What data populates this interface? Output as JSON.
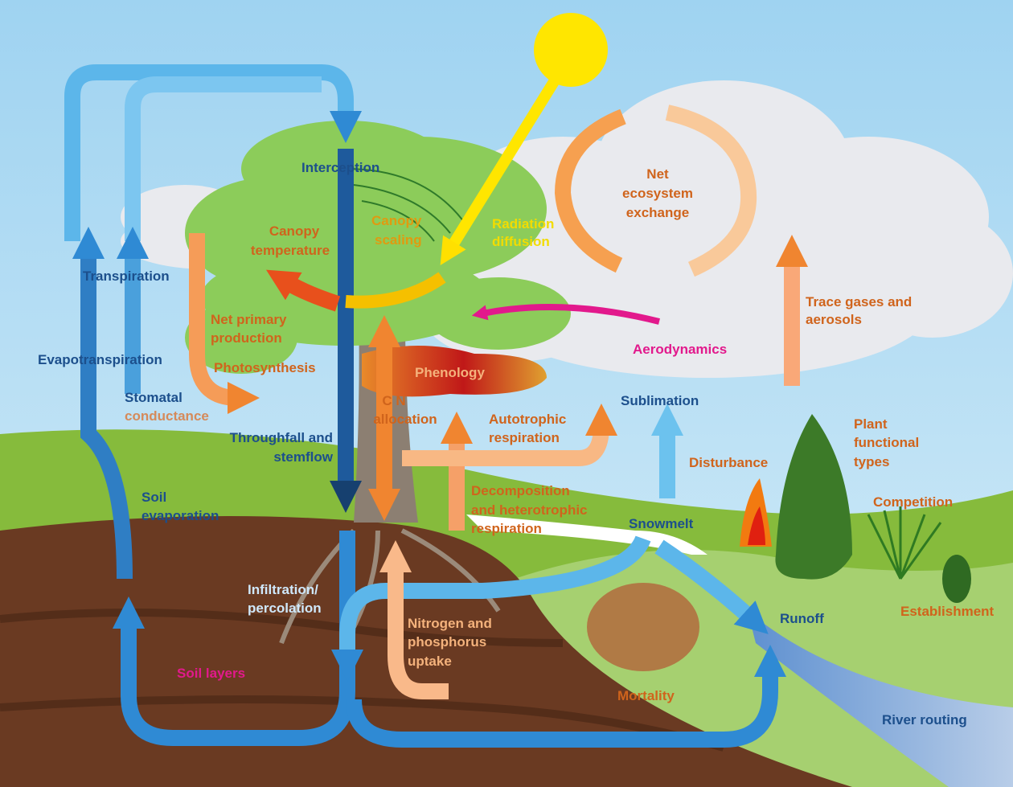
{
  "labels": [
    {
      "lines": [
        "Interception"
      ]
    },
    {
      "lines": [
        "Canopy",
        "scaling"
      ]
    },
    {
      "lines": [
        "Radiation",
        "diffusion"
      ]
    },
    {
      "lines": [
        "Canopy",
        "temperature"
      ]
    },
    {
      "lines": [
        "Net",
        "ecosystem",
        "exchange"
      ]
    },
    {
      "lines": [
        "Transpiration"
      ]
    },
    {
      "lines": [
        "Trace gases and",
        "aerosols"
      ]
    },
    {
      "lines": [
        "Net primary",
        "production"
      ]
    },
    {
      "lines": [
        "Aerodynamics"
      ]
    },
    {
      "lines": [
        "Evapotranspiration"
      ]
    },
    {
      "lines": [
        "Photosynthesis"
      ]
    },
    {
      "lines": [
        "Phenology"
      ]
    },
    {
      "lines": [
        "Stomatal",
        "conductance"
      ]
    },
    {
      "lines": [
        "Sublimation"
      ]
    },
    {
      "lines": [
        "Plant",
        "functional",
        "types"
      ]
    },
    {
      "lines": [
        "C N",
        "allocation"
      ]
    },
    {
      "lines": [
        "Autotrophic",
        "respiration"
      ]
    },
    {
      "lines": [
        "Throughfall and",
        "stemflow"
      ]
    },
    {
      "lines": [
        "Disturbance"
      ]
    },
    {
      "lines": [
        "Soil",
        "evaporation"
      ]
    },
    {
      "lines": [
        "Decomposition",
        "and heterotrophic",
        "respiration"
      ]
    },
    {
      "lines": [
        "Competition"
      ]
    },
    {
      "lines": [
        "Snowmelt"
      ]
    },
    {
      "lines": [
        "Infiltration/",
        "percolation"
      ]
    },
    {
      "lines": [
        "Runoff"
      ]
    },
    {
      "lines": [
        "Establishment"
      ]
    },
    {
      "lines": [
        "Nitrogen and",
        "phosphorus",
        "uptake"
      ]
    },
    {
      "lines": [
        "Soil layers"
      ]
    },
    {
      "lines": [
        "Mortality"
      ]
    },
    {
      "lines": [
        "River routing"
      ]
    }
  ]
}
